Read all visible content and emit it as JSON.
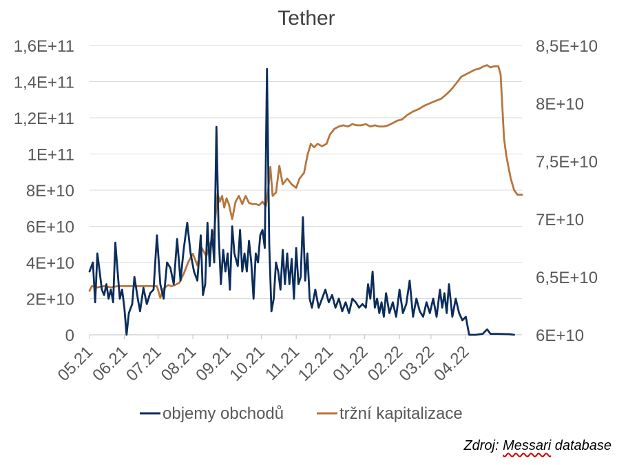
{
  "chart_data": {
    "type": "line",
    "title": "Tether",
    "x_tick_labels": [
      "05.21",
      "06.21",
      "07.21",
      "08.21",
      "09.21",
      "10.21",
      "11.21",
      "12.21",
      "01.22",
      "02.22",
      "03.22",
      "04.22"
    ],
    "y_left": {
      "ticks": [
        "0",
        "2E+10",
        "4E+10",
        "6E+10",
        "8E+10",
        "1E+11",
        "1,2E+11",
        "1,4E+11",
        "1,6E+11"
      ],
      "range": [
        0,
        160000000000
      ]
    },
    "y_right": {
      "ticks": [
        "6E+10",
        "6,5E+10",
        "7E+10",
        "7,5E+10",
        "8E+10",
        "8,5E+10"
      ],
      "range": [
        60000000000,
        85000000000
      ]
    },
    "grid": true,
    "legend_position": "bottom",
    "series": [
      {
        "name": "objemy obchodů",
        "axis": "left",
        "color": "#0b2d5b",
        "points": [
          [
            "2021-05-01",
            35
          ],
          [
            "2021-05-04",
            40
          ],
          [
            "2021-05-06",
            18
          ],
          [
            "2021-05-08",
            45
          ],
          [
            "2021-05-10",
            35
          ],
          [
            "2021-05-12",
            25
          ],
          [
            "2021-05-14",
            22
          ],
          [
            "2021-05-16",
            28
          ],
          [
            "2021-05-18",
            20
          ],
          [
            "2021-05-20",
            25
          ],
          [
            "2021-05-22",
            18
          ],
          [
            "2021-05-24",
            51
          ],
          [
            "2021-05-26",
            35
          ],
          [
            "2021-05-28",
            20
          ],
          [
            "2021-05-30",
            25
          ],
          [
            "2021-06-01",
            15
          ],
          [
            "2021-06-03",
            0
          ],
          [
            "2021-06-05",
            12
          ],
          [
            "2021-06-08",
            17
          ],
          [
            "2021-06-10",
            32
          ],
          [
            "2021-06-13",
            20
          ],
          [
            "2021-06-15",
            13
          ],
          [
            "2021-06-18",
            26
          ],
          [
            "2021-06-21",
            17
          ],
          [
            "2021-06-24",
            23
          ],
          [
            "2021-06-27",
            25
          ],
          [
            "2021-06-30",
            55
          ],
          [
            "2021-07-03",
            28
          ],
          [
            "2021-07-06",
            20
          ],
          [
            "2021-07-09",
            40
          ],
          [
            "2021-07-12",
            37
          ],
          [
            "2021-07-15",
            28
          ],
          [
            "2021-07-18",
            53
          ],
          [
            "2021-07-21",
            30
          ],
          [
            "2021-07-24",
            48
          ],
          [
            "2021-07-27",
            62
          ],
          [
            "2021-07-30",
            45
          ],
          [
            "2021-08-02",
            35
          ],
          [
            "2021-08-05",
            30
          ],
          [
            "2021-08-08",
            55
          ],
          [
            "2021-08-10",
            22
          ],
          [
            "2021-08-12",
            28
          ],
          [
            "2021-08-14",
            62
          ],
          [
            "2021-08-16",
            38
          ],
          [
            "2021-08-18",
            58
          ],
          [
            "2021-08-20",
            40
          ],
          [
            "2021-08-22",
            115
          ],
          [
            "2021-08-24",
            55
          ],
          [
            "2021-08-26",
            28
          ],
          [
            "2021-08-28",
            47
          ],
          [
            "2021-08-30",
            35
          ],
          [
            "2021-09-01",
            45
          ],
          [
            "2021-09-03",
            25
          ],
          [
            "2021-09-05",
            60
          ],
          [
            "2021-09-07",
            45
          ],
          [
            "2021-09-10",
            38
          ],
          [
            "2021-09-12",
            58
          ],
          [
            "2021-09-14",
            35
          ],
          [
            "2021-09-16",
            45
          ],
          [
            "2021-09-18",
            35
          ],
          [
            "2021-09-20",
            52
          ],
          [
            "2021-09-22",
            40
          ],
          [
            "2021-09-24",
            20
          ],
          [
            "2021-09-26",
            45
          ],
          [
            "2021-09-28",
            40
          ],
          [
            "2021-09-30",
            55
          ],
          [
            "2021-10-02",
            58
          ],
          [
            "2021-10-04",
            48
          ],
          [
            "2021-10-06",
            147
          ],
          [
            "2021-10-08",
            50
          ],
          [
            "2021-10-10",
            13
          ],
          [
            "2021-10-12",
            20
          ],
          [
            "2021-10-14",
            40
          ],
          [
            "2021-10-16",
            35
          ],
          [
            "2021-10-18",
            25
          ],
          [
            "2021-10-20",
            47
          ],
          [
            "2021-10-22",
            28
          ],
          [
            "2021-10-24",
            45
          ],
          [
            "2021-10-26",
            28
          ],
          [
            "2021-10-28",
            42
          ],
          [
            "2021-10-30",
            20
          ],
          [
            "2021-11-01",
            48
          ],
          [
            "2021-11-03",
            28
          ],
          [
            "2021-11-05",
            32
          ],
          [
            "2021-11-07",
            65
          ],
          [
            "2021-11-09",
            30
          ],
          [
            "2021-11-11",
            45
          ],
          [
            "2021-11-13",
            20
          ],
          [
            "2021-11-15",
            15
          ],
          [
            "2021-11-18",
            25
          ],
          [
            "2021-11-21",
            15
          ],
          [
            "2021-11-24",
            20
          ],
          [
            "2021-11-27",
            25
          ],
          [
            "2021-11-30",
            18
          ],
          [
            "2021-12-03",
            22
          ],
          [
            "2021-12-06",
            15
          ],
          [
            "2021-12-09",
            20
          ],
          [
            "2021-12-12",
            13
          ],
          [
            "2021-12-15",
            18
          ],
          [
            "2021-12-18",
            12
          ],
          [
            "2021-12-21",
            20
          ],
          [
            "2021-12-24",
            18
          ],
          [
            "2021-12-27",
            15
          ],
          [
            "2021-12-30",
            17
          ],
          [
            "2022-01-02",
            15
          ],
          [
            "2022-01-04",
            28
          ],
          [
            "2022-01-06",
            20
          ],
          [
            "2022-01-08",
            35
          ],
          [
            "2022-01-10",
            15
          ],
          [
            "2022-01-12",
            20
          ],
          [
            "2022-01-14",
            12
          ],
          [
            "2022-01-16",
            18
          ],
          [
            "2022-01-18",
            10
          ],
          [
            "2022-01-20",
            23
          ],
          [
            "2022-01-23",
            12
          ],
          [
            "2022-01-26",
            18
          ],
          [
            "2022-01-29",
            10
          ],
          [
            "2022-02-01",
            25
          ],
          [
            "2022-02-04",
            12
          ],
          [
            "2022-02-07",
            17
          ],
          [
            "2022-02-10",
            30
          ],
          [
            "2022-02-13",
            10
          ],
          [
            "2022-02-16",
            20
          ],
          [
            "2022-02-19",
            13
          ],
          [
            "2022-02-22",
            10
          ],
          [
            "2022-02-25",
            18
          ],
          [
            "2022-02-28",
            12
          ],
          [
            "2022-03-03",
            20
          ],
          [
            "2022-03-06",
            10
          ],
          [
            "2022-03-09",
            25
          ],
          [
            "2022-03-11",
            15
          ],
          [
            "2022-03-13",
            23
          ],
          [
            "2022-03-15",
            12
          ],
          [
            "2022-03-17",
            28
          ],
          [
            "2022-03-20",
            10
          ],
          [
            "2022-03-23",
            20
          ],
          [
            "2022-03-26",
            12
          ],
          [
            "2022-03-29",
            8
          ],
          [
            "2022-04-01",
            10
          ],
          [
            "2022-04-04",
            0
          ],
          [
            "2022-04-10",
            0
          ],
          [
            "2022-04-16",
            0.5
          ],
          [
            "2022-04-20",
            3
          ],
          [
            "2022-04-23",
            0.5
          ],
          [
            "2022-04-30",
            0.5
          ],
          [
            "2022-05-10",
            0.3
          ],
          [
            "2022-05-14",
            0
          ]
        ]
      },
      {
        "name": "tržní kapitalizace",
        "axis": "right",
        "color": "#b5763d",
        "points": [
          [
            "2021-05-01",
            63.8
          ],
          [
            "2021-05-03",
            64.2
          ],
          [
            "2021-05-08",
            64.1
          ],
          [
            "2021-05-14",
            64.2
          ],
          [
            "2021-05-20",
            64.1
          ],
          [
            "2021-05-26",
            64.2
          ],
          [
            "2021-06-01",
            64.2
          ],
          [
            "2021-06-15",
            64.2
          ],
          [
            "2021-06-30",
            64.2
          ],
          [
            "2021-07-03",
            63.2
          ],
          [
            "2021-07-06",
            64.0
          ],
          [
            "2021-07-10",
            64.3
          ],
          [
            "2021-07-13",
            64.2
          ],
          [
            "2021-07-16",
            64.3
          ],
          [
            "2021-07-20",
            64.5
          ],
          [
            "2021-07-24",
            65.3
          ],
          [
            "2021-07-28",
            66.3
          ],
          [
            "2021-08-01",
            67.0
          ],
          [
            "2021-08-05",
            66.0
          ],
          [
            "2021-08-09",
            67.5
          ],
          [
            "2021-08-13",
            66.8
          ],
          [
            "2021-08-17",
            68.0
          ],
          [
            "2021-08-20",
            69.0
          ],
          [
            "2021-08-23",
            72.2
          ],
          [
            "2021-08-25",
            71.5
          ],
          [
            "2021-08-27",
            72.0
          ],
          [
            "2021-08-29",
            71.0
          ],
          [
            "2021-08-31",
            71.8
          ],
          [
            "2021-09-02",
            71.3
          ],
          [
            "2021-09-05",
            70.0
          ],
          [
            "2021-09-08",
            71.5
          ],
          [
            "2021-09-11",
            72.0
          ],
          [
            "2021-09-14",
            71.3
          ],
          [
            "2021-09-17",
            72.0
          ],
          [
            "2021-09-20",
            71.4
          ],
          [
            "2021-09-23",
            71.3
          ],
          [
            "2021-09-26",
            71.3
          ],
          [
            "2021-09-29",
            71.2
          ],
          [
            "2021-10-02",
            71.5
          ],
          [
            "2021-10-05",
            71.1
          ],
          [
            "2021-10-07",
            72.5
          ],
          [
            "2021-10-09",
            74.5
          ],
          [
            "2021-10-11",
            72.0
          ],
          [
            "2021-10-14",
            72.3
          ],
          [
            "2021-10-17",
            74.6
          ],
          [
            "2021-10-20",
            73.0
          ],
          [
            "2021-10-24",
            73.5
          ],
          [
            "2021-10-28",
            73.0
          ],
          [
            "2021-11-01",
            72.7
          ],
          [
            "2021-11-04",
            73.5
          ],
          [
            "2021-11-08",
            74.0
          ],
          [
            "2021-11-11",
            75.5
          ],
          [
            "2021-11-14",
            76.5
          ],
          [
            "2021-11-17",
            76.2
          ],
          [
            "2021-11-20",
            76.5
          ],
          [
            "2021-11-24",
            76.3
          ],
          [
            "2021-11-28",
            76.5
          ],
          [
            "2021-12-01",
            77.3
          ],
          [
            "2021-12-05",
            77.8
          ],
          [
            "2021-12-09",
            78.0
          ],
          [
            "2021-12-13",
            78.1
          ],
          [
            "2021-12-17",
            78.0
          ],
          [
            "2021-12-21",
            78.2
          ],
          [
            "2021-12-25",
            78.1
          ],
          [
            "2021-12-29",
            78.1
          ],
          [
            "2022-01-02",
            78.2
          ],
          [
            "2022-01-06",
            78.0
          ],
          [
            "2022-01-10",
            78.1
          ],
          [
            "2022-01-14",
            78.0
          ],
          [
            "2022-01-18",
            78.0
          ],
          [
            "2022-01-22",
            78.1
          ],
          [
            "2022-01-26",
            78.3
          ],
          [
            "2022-01-30",
            78.5
          ],
          [
            "2022-02-03",
            78.6
          ],
          [
            "2022-02-08",
            79.0
          ],
          [
            "2022-02-13",
            79.3
          ],
          [
            "2022-02-18",
            79.5
          ],
          [
            "2022-02-23",
            79.8
          ],
          [
            "2022-02-28",
            80.0
          ],
          [
            "2022-03-05",
            80.2
          ],
          [
            "2022-03-10",
            80.4
          ],
          [
            "2022-03-15",
            80.8
          ],
          [
            "2022-03-20",
            81.3
          ],
          [
            "2022-03-24",
            81.8
          ],
          [
            "2022-03-28",
            82.3
          ],
          [
            "2022-04-01",
            82.5
          ],
          [
            "2022-04-05",
            82.7
          ],
          [
            "2022-04-09",
            82.9
          ],
          [
            "2022-04-13",
            83.0
          ],
          [
            "2022-04-17",
            83.2
          ],
          [
            "2022-04-20",
            83.3
          ],
          [
            "2022-04-23",
            83.1
          ],
          [
            "2022-04-26",
            83.2
          ],
          [
            "2022-04-30",
            83.2
          ],
          [
            "2022-05-02",
            82.5
          ],
          [
            "2022-05-05",
            77.0
          ],
          [
            "2022-05-07",
            75.5
          ],
          [
            "2022-05-09",
            74.5
          ],
          [
            "2022-05-11",
            73.5
          ],
          [
            "2022-05-14",
            72.5
          ],
          [
            "2022-05-17",
            72.1
          ],
          [
            "2022-05-21",
            72.1
          ]
        ]
      }
    ]
  },
  "source": {
    "prefix": "Zdroj: ",
    "name": "Messari",
    "suffix": " database"
  }
}
